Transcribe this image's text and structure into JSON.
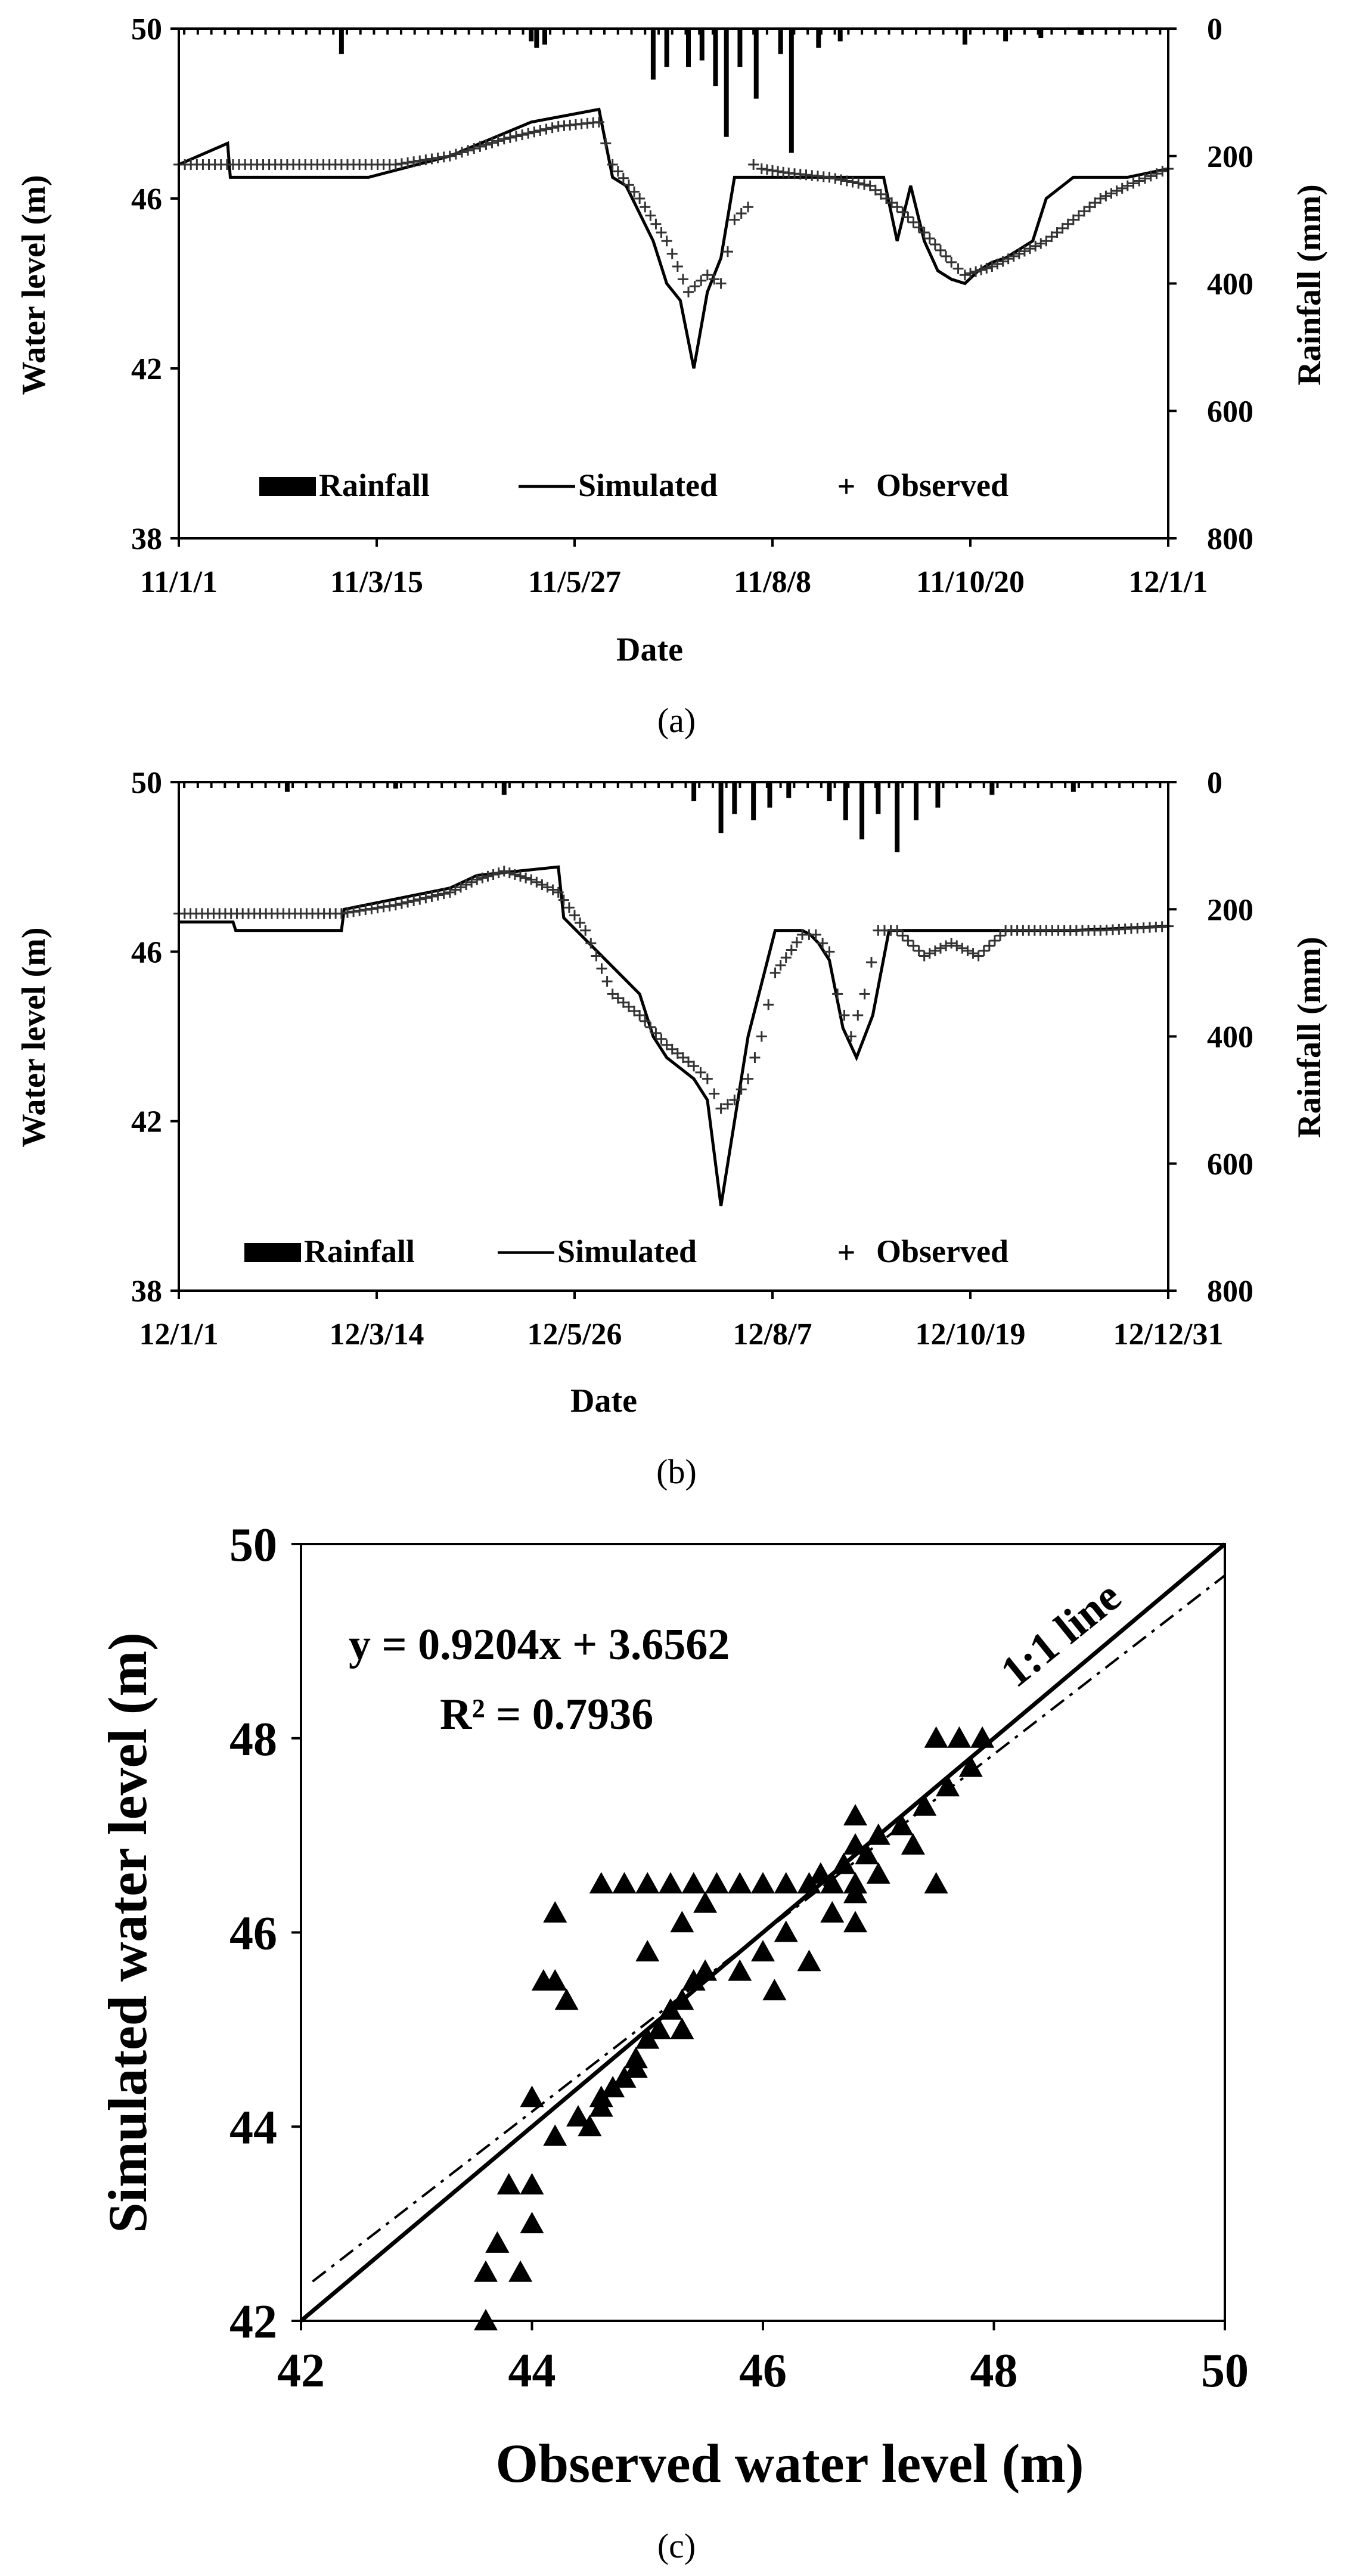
{
  "chart_data": [
    {
      "type": "line",
      "panel_label": "(a)",
      "xlabel": "Date",
      "ylabel": "Water level (m)",
      "y2label": "Rainfall (mm)",
      "x_ticks": [
        "11/1/1",
        "11/3/15",
        "11/5/27",
        "11/8/8",
        "11/10/20",
        "12/1/1"
      ],
      "y_ticks": [
        "38",
        "42",
        "46",
        "50"
      ],
      "y2_ticks": [
        "0",
        "200",
        "400",
        "600",
        "800"
      ],
      "ylim": [
        38,
        50
      ],
      "y2lim": [
        800,
        0
      ],
      "xlim": [
        0,
        365
      ],
      "legend": {
        "rainfall": "Rainfall",
        "simulated": "Simulated",
        "observed": "Observed"
      },
      "simulated": {
        "x": [
          0,
          18,
          19,
          40,
          70,
          100,
          130,
          155,
          160,
          165,
          175,
          180,
          185,
          190,
          195,
          200,
          205,
          210,
          215,
          220,
          225,
          260,
          265,
          270,
          275,
          280,
          285,
          290,
          295,
          300,
          305,
          310,
          315,
          320,
          330,
          340,
          350,
          365
        ],
        "y": [
          46.8,
          47.3,
          46.5,
          46.5,
          46.5,
          47.0,
          47.8,
          48.1,
          46.5,
          46.3,
          45.0,
          44.0,
          43.6,
          42.0,
          43.8,
          44.6,
          46.5,
          46.5,
          46.5,
          46.5,
          46.5,
          46.5,
          45.0,
          46.3,
          45.0,
          44.3,
          44.1,
          44.0,
          44.3,
          44.5,
          44.6,
          44.8,
          45.0,
          46.0,
          46.5,
          46.5,
          46.5,
          46.7
        ]
      },
      "observed": {
        "x": [
          0,
          20,
          40,
          60,
          80,
          100,
          120,
          140,
          155,
          160,
          170,
          180,
          188,
          195,
          200,
          205,
          210,
          212,
          215,
          225,
          240,
          255,
          265,
          275,
          285,
          290,
          300,
          310,
          320,
          330,
          340,
          350,
          365
        ],
        "y": [
          46.8,
          46.8,
          46.8,
          46.8,
          46.8,
          47.0,
          47.4,
          47.7,
          47.8,
          46.8,
          46.0,
          45.0,
          43.8,
          44.2,
          44.0,
          45.5,
          45.8,
          46.8,
          46.7,
          46.6,
          46.5,
          46.3,
          45.8,
          45.2,
          44.5,
          44.2,
          44.4,
          44.7,
          45.0,
          45.5,
          46.0,
          46.3,
          46.7
        ]
      },
      "rainfall_bars": [
        {
          "x": 60,
          "mm": 40
        },
        {
          "x": 130,
          "mm": 20
        },
        {
          "x": 132,
          "mm": 30
        },
        {
          "x": 135,
          "mm": 25
        },
        {
          "x": 175,
          "mm": 80
        },
        {
          "x": 180,
          "mm": 60
        },
        {
          "x": 188,
          "mm": 60
        },
        {
          "x": 193,
          "mm": 50
        },
        {
          "x": 198,
          "mm": 90
        },
        {
          "x": 202,
          "mm": 170
        },
        {
          "x": 207,
          "mm": 60
        },
        {
          "x": 213,
          "mm": 110
        },
        {
          "x": 222,
          "mm": 40
        },
        {
          "x": 226,
          "mm": 195
        },
        {
          "x": 236,
          "mm": 30
        },
        {
          "x": 244,
          "mm": 20
        },
        {
          "x": 290,
          "mm": 25
        },
        {
          "x": 305,
          "mm": 20
        },
        {
          "x": 318,
          "mm": 15
        },
        {
          "x": 333,
          "mm": 10
        }
      ]
    },
    {
      "type": "line",
      "panel_label": "(b)",
      "xlabel": "Date",
      "ylabel": "Water level (m)",
      "y2label": "Rainfall (mm)",
      "x_ticks": [
        "12/1/1",
        "12/3/14",
        "12/5/26",
        "12/8/7",
        "12/10/19",
        "12/12/31"
      ],
      "y_ticks": [
        "38",
        "42",
        "46",
        "50"
      ],
      "y2_ticks": [
        "0",
        "200",
        "400",
        "600",
        "800"
      ],
      "ylim": [
        38,
        50
      ],
      "y2lim": [
        800,
        0
      ],
      "xlim": [
        0,
        365
      ],
      "legend": {
        "rainfall": "Rainfall",
        "simulated": "Simulated",
        "observed": "Observed"
      },
      "simulated": {
        "x": [
          0,
          20,
          21,
          60,
          61,
          100,
          110,
          140,
          142,
          170,
          175,
          180,
          190,
          195,
          200,
          210,
          220,
          225,
          230,
          233,
          236,
          240,
          245,
          250,
          256,
          262,
          267,
          270,
          275,
          300,
          330,
          365
        ],
        "y": [
          46.7,
          46.7,
          46.5,
          46.5,
          47.0,
          47.5,
          47.8,
          48.0,
          46.8,
          45.0,
          44.0,
          43.5,
          43.0,
          42.5,
          40.0,
          44.0,
          46.5,
          46.5,
          46.5,
          46.4,
          46.2,
          45.8,
          44.2,
          43.5,
          44.5,
          46.5,
          46.5,
          46.5,
          46.5,
          46.5,
          46.5,
          46.6
        ]
      },
      "observed": {
        "x": [
          0,
          30,
          60,
          80,
          100,
          110,
          120,
          130,
          140,
          150,
          160,
          170,
          180,
          190,
          195,
          200,
          205,
          210,
          215,
          220,
          230,
          235,
          240,
          243,
          248,
          253,
          258,
          265,
          275,
          285,
          295,
          305,
          320,
          340,
          365
        ],
        "y": [
          46.9,
          46.9,
          46.9,
          47.1,
          47.4,
          47.7,
          47.9,
          47.7,
          47.4,
          46.5,
          45.0,
          44.5,
          43.8,
          43.3,
          43.0,
          42.3,
          42.5,
          43.0,
          44.0,
          45.5,
          46.4,
          46.4,
          46.0,
          45.0,
          44.0,
          45.0,
          46.5,
          46.5,
          45.9,
          46.2,
          45.9,
          46.5,
          46.5,
          46.5,
          46.6
        ]
      },
      "rainfall_bars": [
        {
          "x": 40,
          "mm": 15
        },
        {
          "x": 80,
          "mm": 10
        },
        {
          "x": 120,
          "mm": 20
        },
        {
          "x": 190,
          "mm": 30
        },
        {
          "x": 200,
          "mm": 80
        },
        {
          "x": 205,
          "mm": 50
        },
        {
          "x": 212,
          "mm": 60
        },
        {
          "x": 218,
          "mm": 40
        },
        {
          "x": 225,
          "mm": 25
        },
        {
          "x": 240,
          "mm": 30
        },
        {
          "x": 246,
          "mm": 60
        },
        {
          "x": 252,
          "mm": 90
        },
        {
          "x": 258,
          "mm": 50
        },
        {
          "x": 265,
          "mm": 110
        },
        {
          "x": 272,
          "mm": 60
        },
        {
          "x": 280,
          "mm": 40
        },
        {
          "x": 300,
          "mm": 20
        },
        {
          "x": 330,
          "mm": 15
        }
      ]
    },
    {
      "type": "scatter",
      "panel_label": "(c)",
      "xlabel": "Observed water level (m)",
      "ylabel": "Simulated water level (m)",
      "x_ticks": [
        "42",
        "44",
        "46",
        "48",
        "50"
      ],
      "y_ticks": [
        "42",
        "44",
        "46",
        "48",
        "50"
      ],
      "xlim": [
        42,
        50
      ],
      "ylim": [
        42,
        50
      ],
      "equation": "y = 0.9204x + 3.6562",
      "r_squared": "R² = 0.7936",
      "one_to_one_label": "1:1 line",
      "regression": {
        "slope": 0.9204,
        "intercept": 3.6562
      },
      "points": {
        "x": [
          43.6,
          43.7,
          43.8,
          43.9,
          44.0,
          44.2,
          44.1,
          44.2,
          44.3,
          44.0,
          44.5,
          44.6,
          44.7,
          44.8,
          44.9,
          45.0,
          45.1,
          45.2,
          45.3,
          45.4,
          45.5,
          44.6,
          44.8,
          45.0,
          45.2,
          45.4,
          45.6,
          45.8,
          46.0,
          46.2,
          46.4,
          46.6,
          46.8,
          46.5,
          46.7,
          46.9,
          47.0,
          47.2,
          47.4,
          47.6,
          47.8,
          47.5,
          47.7,
          45.8,
          46.0,
          46.2,
          46.6,
          46.8,
          47.0,
          47.3,
          45.0,
          45.3,
          45.5,
          44.6,
          44.4,
          44.2,
          43.6,
          43.7,
          44.0,
          44.9,
          45.3,
          46.1,
          46.4,
          46.8,
          47.5,
          47.9,
          46.8,
          46.8
        ],
        "y": [
          42.0,
          42.8,
          43.4,
          42.5,
          43.0,
          45.5,
          45.5,
          46.2,
          45.3,
          43.4,
          44.0,
          44.2,
          44.4,
          44.5,
          44.7,
          44.9,
          45.0,
          45.2,
          45.3,
          45.5,
          45.6,
          46.5,
          46.5,
          46.5,
          46.5,
          46.5,
          46.5,
          46.5,
          46.5,
          46.5,
          46.5,
          46.5,
          46.5,
          46.6,
          46.7,
          46.8,
          47.0,
          47.1,
          47.3,
          47.5,
          47.7,
          48.0,
          48.0,
          45.6,
          45.8,
          46.0,
          46.2,
          46.4,
          46.6,
          46.9,
          45.8,
          46.1,
          46.3,
          44.3,
          44.1,
          43.9,
          42.5,
          42.8,
          44.3,
          44.6,
          45.0,
          45.4,
          45.7,
          46.1,
          46.5,
          48.0,
          47.2,
          46.9
        ]
      }
    }
  ]
}
